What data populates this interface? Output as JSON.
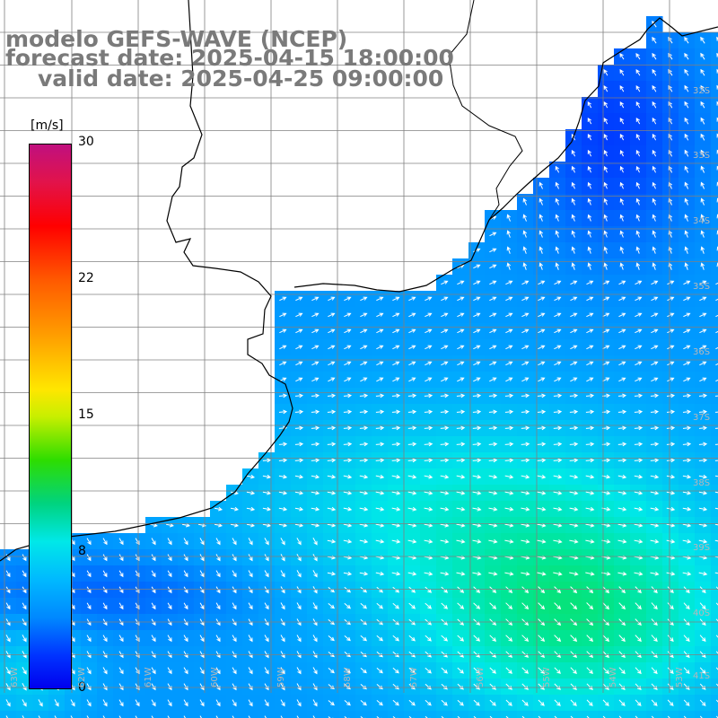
{
  "title": {
    "line1": "modelo GEFS-WAVE (NCEP)",
    "line2": "forecast date: 2025-04-15 18:00:00",
    "line3": "valid date: 2025-04-25 09:00:00"
  },
  "colorbar": {
    "unit": "[m/s]",
    "ticks": [
      "30",
      "22",
      "15",
      "8",
      "0"
    ],
    "colors": [
      "#c0107f",
      "#ff0000",
      "#ff9d00",
      "#ffe600",
      "#2edd00",
      "#00e8e8",
      "#0088ff",
      "#0000ee"
    ]
  },
  "map": {
    "lat_labels": [
      "32S",
      "33S",
      "34S",
      "35S",
      "36S",
      "37S",
      "38S",
      "39S",
      "40S",
      "41S"
    ],
    "lon_labels": [
      "63W",
      "62W",
      "61W",
      "60W",
      "59W",
      "58W",
      "57W",
      "56W",
      "55W",
      "54W",
      "53W"
    ],
    "colors": {
      "land": "#ffffff",
      "coast": "#000000",
      "grid": "#808080",
      "arrow": "#ffffff"
    }
  }
}
